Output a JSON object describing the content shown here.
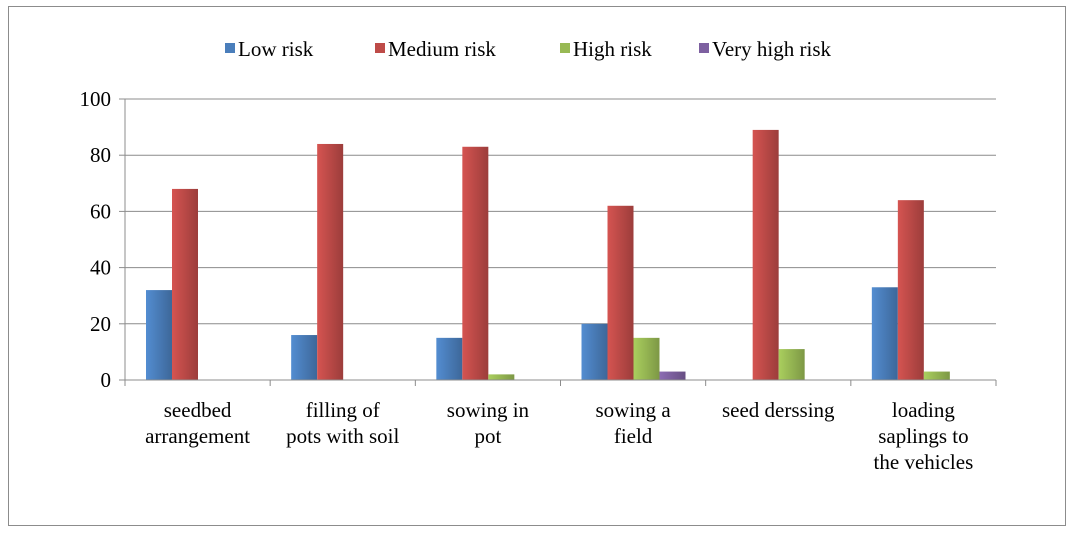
{
  "chart_data": {
    "type": "bar",
    "title": "",
    "xlabel": "",
    "ylabel": "",
    "ylim": [
      0,
      100
    ],
    "yticks": [
      0,
      20,
      40,
      60,
      80,
      100
    ],
    "grid": true,
    "legend_position": "top",
    "categories": [
      [
        "seedbed",
        "arrangement"
      ],
      [
        "filling of",
        "pots with soil"
      ],
      [
        "sowing in",
        "pot"
      ],
      [
        "sowing a",
        "field"
      ],
      [
        "seed derssing"
      ],
      [
        "loading",
        "saplings to",
        "the vehicles"
      ]
    ],
    "series": [
      {
        "name": "Low risk",
        "color": "#4a7ebb",
        "values": [
          32,
          16,
          15,
          20,
          0,
          33
        ]
      },
      {
        "name": "Medium risk",
        "color": "#be4b48",
        "values": [
          68,
          84,
          83,
          62,
          89,
          64
        ]
      },
      {
        "name": "High risk",
        "color": "#98b954",
        "values": [
          0,
          0,
          2,
          15,
          11,
          3
        ]
      },
      {
        "name": "Very high risk",
        "color": "#7d60a0",
        "values": [
          0,
          0,
          0,
          3,
          0,
          0
        ]
      }
    ]
  }
}
